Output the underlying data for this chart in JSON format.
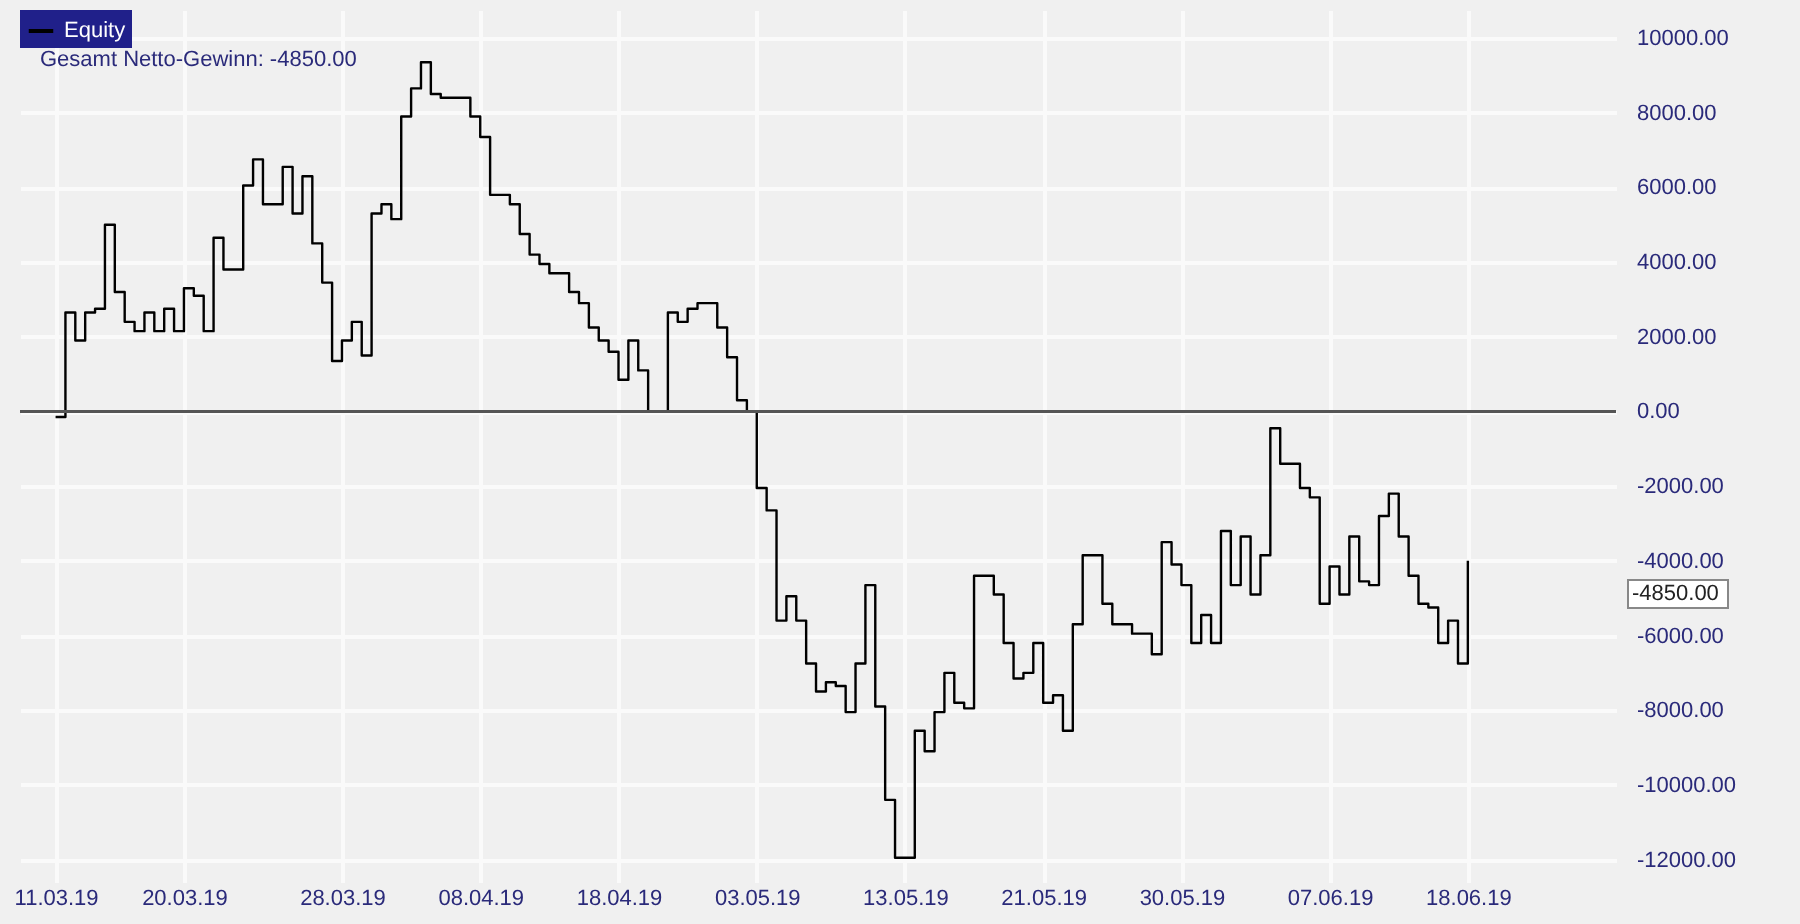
{
  "chart_data": {
    "type": "step",
    "categories": [
      "11.03.19",
      null,
      null,
      null,
      null,
      null,
      null,
      null,
      null,
      null,
      null,
      null,
      null,
      "20.03.19",
      null,
      null,
      null,
      null,
      null,
      null,
      null,
      null,
      null,
      null,
      null,
      null,
      null,
      null,
      null,
      "28.03.19",
      null,
      null,
      null,
      null,
      null,
      null,
      null,
      null,
      null,
      null,
      null,
      null,
      null,
      "08.04.19",
      null,
      null,
      null,
      null,
      null,
      null,
      null,
      null,
      null,
      null,
      null,
      null,
      null,
      "18.04.19",
      null,
      null,
      null,
      null,
      null,
      null,
      null,
      null,
      null,
      null,
      null,
      null,
      null,
      "03.05.19",
      null,
      null,
      null,
      null,
      null,
      null,
      null,
      null,
      null,
      null,
      null,
      null,
      null,
      null,
      "13.05.19",
      null,
      null,
      null,
      null,
      null,
      null,
      null,
      null,
      null,
      null,
      null,
      null,
      null,
      "21.05.19",
      null,
      null,
      null,
      null,
      null,
      null,
      null,
      null,
      null,
      null,
      null,
      null,
      null,
      "30.05.19",
      null,
      null,
      null,
      null,
      null,
      null,
      null,
      null,
      null,
      null,
      null,
      null,
      null,
      null,
      "07.06.19",
      null,
      null,
      null,
      null,
      null,
      null,
      null,
      null,
      null,
      null,
      null,
      null,
      null,
      "18.06.19"
    ],
    "series": [
      {
        "name": "Equity",
        "color": "#000000",
        "values": [
          -150,
          2650,
          1900,
          2650,
          2750,
          5000,
          3200,
          2400,
          2150,
          2650,
          2150,
          2750,
          2150,
          3300,
          3100,
          2150,
          4650,
          3800,
          3800,
          6050,
          6750,
          5550,
          5550,
          6550,
          5300,
          6300,
          4500,
          3450,
          1350,
          1900,
          2400,
          1500,
          5300,
          5550,
          5150,
          7900,
          8650,
          9350,
          8500,
          8400,
          8400,
          8400,
          7900,
          7350,
          5800,
          5800,
          5550,
          4750,
          4200,
          3950,
          3700,
          3700,
          3200,
          2900,
          2250,
          1900,
          1600,
          850,
          1900,
          1100,
          0,
          0,
          2650,
          2400,
          2750,
          2900,
          2900,
          2250,
          1450,
          300,
          0,
          -2050,
          -2650,
          -5600,
          -4950,
          -5600,
          -6750,
          -7500,
          -7250,
          -7350,
          -8050,
          -6750,
          -4650,
          -7900,
          -10400,
          -11950,
          -11950,
          -8550,
          -9100,
          -8050,
          -7000,
          -7800,
          -7950,
          -4400,
          -4400,
          -4900,
          -6200,
          -7150,
          -7000,
          -6200,
          -7800,
          -7600,
          -8550,
          -5700,
          -3850,
          -3850,
          -5150,
          -5700,
          -5700,
          -5950,
          -5950,
          -6500,
          -3500,
          -4100,
          -4650,
          -6200,
          -5450,
          -6200,
          -3200,
          -4650,
          -3350,
          -4900,
          -3850,
          -450,
          -1400,
          -1400,
          -2050,
          -2300,
          -5150,
          -4150,
          -4900,
          -3350,
          -4550,
          -4650,
          -2800,
          -2200,
          -3350,
          -4400,
          -5150,
          -5250,
          -6200,
          -5600,
          -6750,
          -4000
        ]
      }
    ],
    "ylim": [
      -12600,
      10750
    ],
    "yticks": [
      {
        "value": -12000,
        "label": "-12000.00"
      },
      {
        "value": -10000,
        "label": "-10000.00"
      },
      {
        "value": -8000,
        "label": "-8000.00"
      },
      {
        "value": -6000,
        "label": "-6000.00"
      },
      {
        "value": -4000,
        "label": "-4000.00"
      },
      {
        "value": -2000,
        "label": "-2000.00"
      },
      {
        "value": 0,
        "label": "0.00"
      },
      {
        "value": 2000,
        "label": "2000.00"
      },
      {
        "value": 4000,
        "label": "4000.00"
      },
      {
        "value": 6000,
        "label": "6000.00"
      },
      {
        "value": 8000,
        "label": "8000.00"
      },
      {
        "value": 10000,
        "label": "10000.00"
      }
    ],
    "ref_lines": [
      {
        "axis": "y",
        "value": 0,
        "color": "#555555"
      }
    ],
    "annotations": [
      "Gesamt Netto-Gewinn: -4850.00",
      "-4850.00"
    ],
    "grid": true,
    "legend": "top left"
  }
}
